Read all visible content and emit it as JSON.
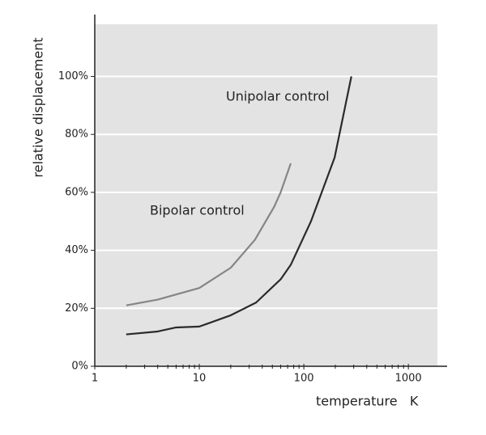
{
  "chart_data": {
    "type": "line",
    "x_label": "temperature   K",
    "y_label": "relative displacement",
    "x_log": true,
    "xlim": [
      1,
      2000
    ],
    "xticks": [
      1,
      10,
      100,
      1000
    ],
    "x_minor_ticks": [
      2,
      3,
      4,
      5,
      6,
      7,
      8,
      9,
      20,
      30,
      40,
      50,
      60,
      70,
      80,
      90,
      200,
      300,
      400,
      500,
      600,
      700,
      800,
      900
    ],
    "ylim": [
      0,
      118
    ],
    "yticks": [
      {
        "value": 0,
        "label": "0%"
      },
      {
        "value": 20,
        "label": "20%"
      },
      {
        "value": 40,
        "label": "40%"
      },
      {
        "value": 60,
        "label": "60%"
      },
      {
        "value": 80,
        "label": "80%"
      },
      {
        "value": 100,
        "label": "100%"
      }
    ],
    "grid": true,
    "background": "#e3e3e3",
    "series": [
      {
        "name": "Unipolar control",
        "color": "#2a2a2a",
        "x": [
          2,
          4,
          6,
          10,
          20,
          35,
          60,
          75,
          117,
          197,
          285
        ],
        "values": [
          11,
          12,
          13.4,
          13.7,
          17.6,
          22,
          30,
          35,
          50,
          72,
          100
        ]
      },
      {
        "name": "Bipolar control",
        "color": "#858585",
        "x": [
          2,
          4,
          6.3,
          10,
          20,
          34,
          52,
          60,
          75
        ],
        "values": [
          21,
          23,
          25,
          27,
          34,
          43.6,
          55,
          60,
          70
        ]
      }
    ]
  }
}
